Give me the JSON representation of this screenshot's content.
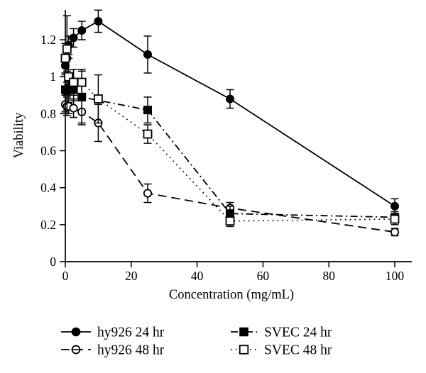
{
  "figure": {
    "background": "#ffffff",
    "ink": "#000000"
  },
  "chart_data": {
    "type": "line",
    "title": "",
    "xlabel": "Concentration (mg/mL)",
    "ylabel": "Viability",
    "xlim": [
      0,
      105
    ],
    "ylim": [
      0,
      1.37
    ],
    "x_ticks": [
      0,
      20,
      40,
      60,
      80,
      100
    ],
    "x_tick_labels": [
      "0",
      "20",
      "40",
      "60",
      "80",
      "100"
    ],
    "y_ticks": [
      0,
      0.2,
      0.4,
      0.6,
      0.8,
      1,
      1.2
    ],
    "y_tick_labels": [
      "0",
      "0.2",
      "0.4",
      "0.6",
      "0.8",
      "1",
      "1.2"
    ],
    "grid": false,
    "legend_position": "bottom",
    "series": [
      {
        "name": "hy926 24 hr",
        "marker": "filled-circle",
        "line": "solid",
        "x": [
          0,
          0.5,
          1,
          2.5,
          5,
          10,
          25,
          50,
          100
        ],
        "y": [
          1.06,
          1.1,
          1.17,
          1.21,
          1.25,
          1.3,
          1.12,
          0.88,
          0.3
        ],
        "err": [
          0.05,
          0.07,
          0.05,
          0.05,
          0.05,
          0.06,
          0.1,
          0.05,
          0.04
        ]
      },
      {
        "name": "hy926 48 hr",
        "marker": "open-circle",
        "line": "dashed",
        "x": [
          0,
          0.5,
          1,
          2.5,
          5,
          10,
          25,
          50,
          100
        ],
        "y": [
          0.85,
          0.84,
          0.84,
          0.83,
          0.81,
          0.75,
          0.37,
          0.29,
          0.16
        ],
        "err": [
          0.05,
          0.05,
          0.04,
          0.05,
          0.06,
          0.1,
          0.05,
          0.03,
          0.02
        ]
      },
      {
        "name": "SVEC 24 hr",
        "marker": "filled-square",
        "line": "dash-dot",
        "x": [
          0,
          0.5,
          1,
          2.5,
          5,
          25,
          50,
          100
        ],
        "y": [
          0.93,
          0.92,
          0.94,
          0.93,
          0.89,
          0.82,
          0.26,
          0.24
        ],
        "err": [
          0.12,
          0.1,
          0.08,
          0.06,
          0.15,
          0.07,
          0.04,
          0.03
        ]
      },
      {
        "name": "SVEC 48 hr",
        "marker": "open-square",
        "line": "dotted",
        "x": [
          0,
          0.5,
          1,
          2.5,
          5,
          10,
          25,
          50,
          100
        ],
        "y": [
          1.1,
          1.15,
          1.0,
          0.97,
          0.97,
          0.88,
          0.69,
          0.22,
          0.23
        ],
        "err": [
          0.08,
          0.18,
          0.1,
          0.07,
          0.06,
          0.13,
          0.05,
          0.03,
          0.03
        ]
      }
    ]
  },
  "legend": {
    "items": [
      {
        "label": "hy926 24 hr",
        "marker": "filled-circle",
        "line": "solid"
      },
      {
        "label": "hy926 48 hr",
        "marker": "open-circle",
        "line": "dashed"
      },
      {
        "label": "SVEC 24 hr",
        "marker": "filled-square",
        "line": "dash-dot"
      },
      {
        "label": "SVEC 48 hr",
        "marker": "open-square",
        "line": "dotted"
      }
    ]
  }
}
